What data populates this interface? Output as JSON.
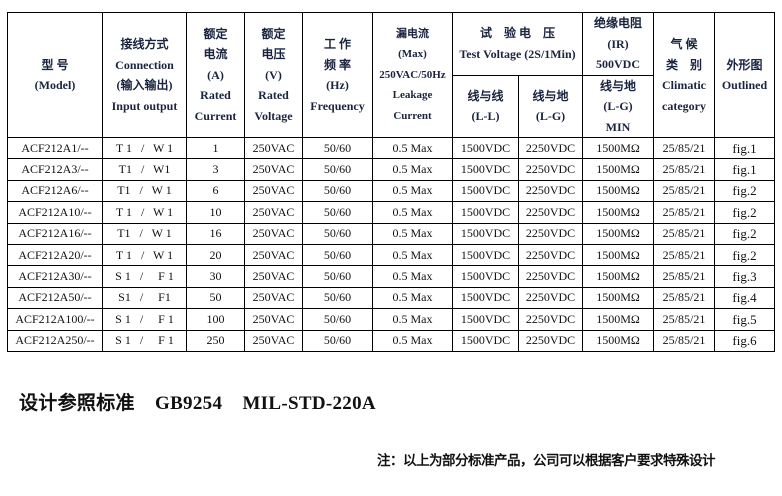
{
  "header": {
    "model": [
      "型 号",
      "(Model)"
    ],
    "connection": [
      "接线方式",
      "Connection",
      "(输入输出)",
      "Input output"
    ],
    "current": [
      "额定",
      "电流",
      "(A)",
      "Rated",
      "Current"
    ],
    "voltage": [
      "额定",
      "电压",
      "(V)",
      "Rated",
      "Voltage"
    ],
    "frequency": [
      "工 作",
      "频 率",
      "(Hz)",
      "Frequency"
    ],
    "leakage": [
      "漏电流",
      "(Max)",
      "250VAC/50Hz",
      "Leakage",
      "Current"
    ],
    "test_voltage": [
      "试　验 电　压",
      "Test Voltage (2S/1Min)"
    ],
    "ll": [
      "线与线",
      "(L-L)"
    ],
    "lg": [
      "线与地",
      "(L-G)"
    ],
    "ir": [
      "绝缘电阻",
      "(IR)",
      "500VDC"
    ],
    "ir_lg": [
      "线与地",
      "(L-G)",
      "MIN"
    ],
    "climatic": [
      "气 候",
      "类　别",
      "Climatic",
      "category"
    ],
    "outlined": [
      "外形图",
      "Outlined"
    ]
  },
  "rows": [
    {
      "model": "ACF212A1/--",
      "conn": "T 1   /   W 1",
      "current": "1",
      "voltage": "250VAC",
      "freq": "50/60",
      "leak": "0.5 Max",
      "ll": "1500VDC",
      "lg": "2250VDC",
      "ir": "1500MΩ",
      "climatic": "25/85/21",
      "fig": "fig.1"
    },
    {
      "model": "ACF212A3/--",
      "conn": "T1   /   W1",
      "current": "3",
      "voltage": "250VAC",
      "freq": "50/60",
      "leak": "0.5 Max",
      "ll": "1500VDC",
      "lg": "2250VDC",
      "ir": "1500MΩ",
      "climatic": "25/85/21",
      "fig": "fig.1"
    },
    {
      "model": "ACF212A6/--",
      "conn": "T1   /   W 1",
      "current": "6",
      "voltage": "250VAC",
      "freq": "50/60",
      "leak": "0.5 Max",
      "ll": "1500VDC",
      "lg": "2250VDC",
      "ir": "1500MΩ",
      "climatic": "25/85/21",
      "fig": "fig.2"
    },
    {
      "model": "ACF212A10/--",
      "conn": "T 1   /   W 1",
      "current": "10",
      "voltage": "250VAC",
      "freq": "50/60",
      "leak": "0.5 Max",
      "ll": "1500VDC",
      "lg": "2250VDC",
      "ir": "1500MΩ",
      "climatic": "25/85/21",
      "fig": "fig.2"
    },
    {
      "model": "ACF212A16/--",
      "conn": "T1   /   W 1",
      "current": "16",
      "voltage": "250VAC",
      "freq": "50/60",
      "leak": "0.5 Max",
      "ll": "1500VDC",
      "lg": "2250VDC",
      "ir": "1500MΩ",
      "climatic": "25/85/21",
      "fig": "fig.2"
    },
    {
      "model": "ACF212A20/--",
      "conn": "T 1   /   W 1",
      "current": "20",
      "voltage": "250VAC",
      "freq": "50/60",
      "leak": "0.5 Max",
      "ll": "1500VDC",
      "lg": "2250VDC",
      "ir": "1500MΩ",
      "climatic": "25/85/21",
      "fig": "fig.2"
    },
    {
      "model": "ACF212A30/--",
      "conn": "S 1   /     F 1",
      "current": "30",
      "voltage": "250VAC",
      "freq": "50/60",
      "leak": "0.5 Max",
      "ll": "1500VDC",
      "lg": "2250VDC",
      "ir": "1500MΩ",
      "climatic": "25/85/21",
      "fig": "fig.3"
    },
    {
      "model": "ACF212A50/--",
      "conn": "S1   /     F1",
      "current": "50",
      "voltage": "250VAC",
      "freq": "50/60",
      "leak": "0.5 Max",
      "ll": "1500VDC",
      "lg": "2250VDC",
      "ir": "1500MΩ",
      "climatic": "25/85/21",
      "fig": "fig.4"
    },
    {
      "model": "ACF212A100/--",
      "conn": "S 1   /     F 1",
      "current": "100",
      "voltage": "250VAC",
      "freq": "50/60",
      "leak": "0.5 Max",
      "ll": "1500VDC",
      "lg": "2250VDC",
      "ir": "1500MΩ",
      "climatic": "25/85/21",
      "fig": "fig.5"
    },
    {
      "model": "ACF212A250/--",
      "conn": "S 1   /     F 1",
      "current": "250",
      "voltage": "250VAC",
      "freq": "50/60",
      "leak": "0.5 Max",
      "ll": "1500VDC",
      "lg": "2250VDC",
      "ir": "1500MΩ",
      "climatic": "25/85/21",
      "fig": "fig.6"
    }
  ],
  "standard": "设计参照标准    GB9254    MIL-STD-220A",
  "note": "注：以上为部分标准产品，公司可以根据客户要求特殊设计"
}
